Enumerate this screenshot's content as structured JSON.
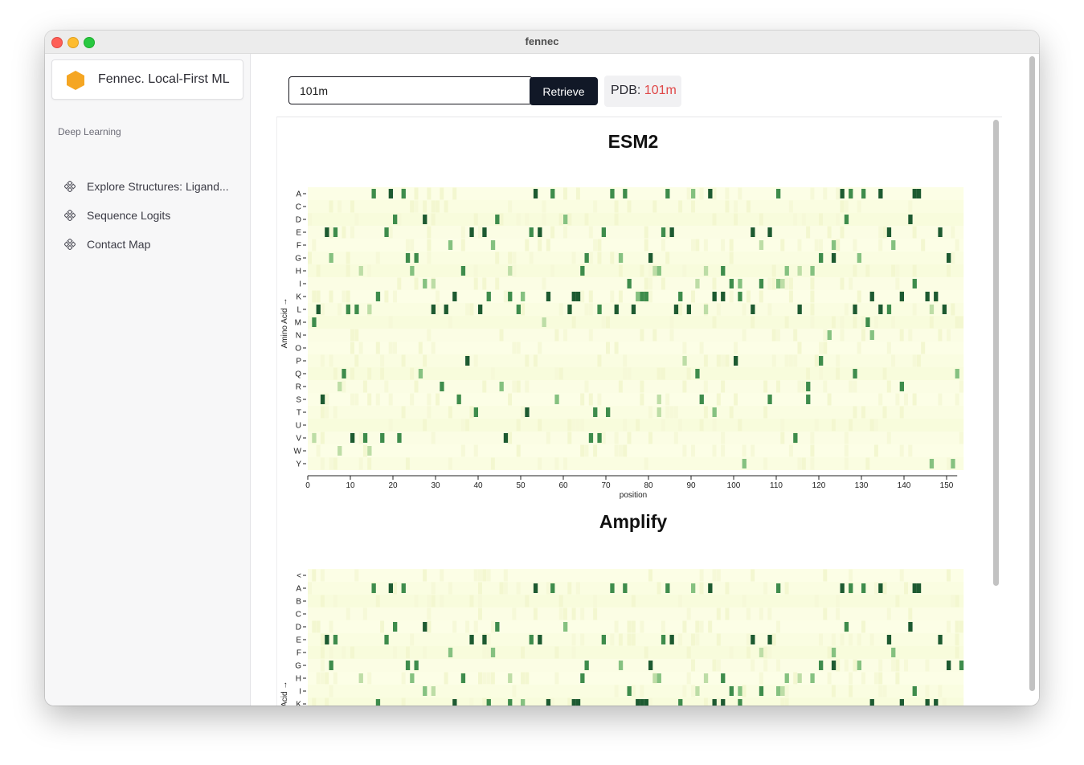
{
  "window": {
    "title": "fennec"
  },
  "sidebar": {
    "brand": "Fennec. Local-First ML",
    "section": "Deep Learning",
    "items": [
      {
        "label": "Explore Structures: Ligand..."
      },
      {
        "label": "Sequence Logits"
      },
      {
        "label": "Contact Map"
      }
    ]
  },
  "search": {
    "value": "101m",
    "button_label": "Retrieve"
  },
  "pdb": {
    "label": "PDB:",
    "value": "101m"
  },
  "colors": {
    "accent": "#f5a623",
    "button": "#111827",
    "pdb_value": "#e04848",
    "heat_low": "#fafde0",
    "heat_high": "#1d5a31"
  },
  "chart_data": [
    {
      "type": "heatmap",
      "title": "ESM2",
      "xlabel": "position",
      "ylabel": "Amino Acid →",
      "xlim": [
        0,
        153
      ],
      "x_ticks": [
        0,
        10,
        20,
        30,
        40,
        50,
        60,
        70,
        80,
        90,
        100,
        110,
        120,
        130,
        140,
        150
      ],
      "rows": [
        "A",
        "C",
        "D",
        "E",
        "F",
        "G",
        "H",
        "I",
        "K",
        "L",
        "M",
        "N",
        "O",
        "P",
        "Q",
        "R",
        "S",
        "T",
        "U",
        "V",
        "W",
        "Y"
      ],
      "cells": {
        "A": [
          [
            15,
            3
          ],
          [
            19,
            4
          ],
          [
            22,
            3
          ],
          [
            53,
            4
          ],
          [
            57,
            3
          ],
          [
            71,
            3
          ],
          [
            74,
            3
          ],
          [
            84,
            3
          ],
          [
            90,
            2
          ],
          [
            94,
            4
          ],
          [
            110,
            3
          ],
          [
            125,
            4
          ],
          [
            127,
            3
          ],
          [
            130,
            3
          ],
          [
            134,
            4
          ],
          [
            142,
            4
          ],
          [
            143,
            4
          ]
        ],
        "D": [
          [
            20,
            3
          ],
          [
            27,
            4
          ],
          [
            44,
            3
          ],
          [
            60,
            2
          ],
          [
            126,
            3
          ],
          [
            141,
            4
          ]
        ],
        "E": [
          [
            4,
            4
          ],
          [
            6,
            3
          ],
          [
            18,
            3
          ],
          [
            38,
            4
          ],
          [
            41,
            4
          ],
          [
            52,
            3
          ],
          [
            54,
            4
          ],
          [
            69,
            3
          ],
          [
            83,
            3
          ],
          [
            85,
            4
          ],
          [
            104,
            4
          ],
          [
            108,
            4
          ],
          [
            136,
            4
          ],
          [
            148,
            4
          ]
        ],
        "F": [
          [
            33,
            2
          ],
          [
            43,
            2
          ],
          [
            106,
            1
          ],
          [
            123,
            2
          ],
          [
            137,
            2
          ]
        ],
        "G": [
          [
            5,
            2
          ],
          [
            23,
            3
          ],
          [
            25,
            3
          ],
          [
            65,
            3
          ],
          [
            73,
            2
          ],
          [
            80,
            4
          ],
          [
            120,
            3
          ],
          [
            123,
            4
          ],
          [
            129,
            2
          ],
          [
            150,
            4
          ]
        ],
        "H": [
          [
            12,
            1
          ],
          [
            24,
            2
          ],
          [
            36,
            3
          ],
          [
            47,
            1
          ],
          [
            64,
            3
          ],
          [
            81,
            1
          ],
          [
            82,
            2
          ],
          [
            93,
            1
          ],
          [
            97,
            3
          ],
          [
            112,
            2
          ],
          [
            115,
            1
          ],
          [
            118,
            2
          ]
        ],
        "I": [
          [
            27,
            2
          ],
          [
            29,
            1
          ],
          [
            75,
            3
          ],
          [
            91,
            1
          ],
          [
            99,
            3
          ],
          [
            101,
            2
          ],
          [
            106,
            3
          ],
          [
            110,
            2
          ],
          [
            111,
            1
          ],
          [
            142,
            3
          ]
        ],
        "K": [
          [
            16,
            3
          ],
          [
            34,
            4
          ],
          [
            42,
            3
          ],
          [
            47,
            3
          ],
          [
            50,
            2
          ],
          [
            56,
            4
          ],
          [
            62,
            4
          ],
          [
            63,
            4
          ],
          [
            77,
            2
          ],
          [
            78,
            3
          ],
          [
            79,
            3
          ],
          [
            87,
            3
          ],
          [
            95,
            4
          ],
          [
            97,
            4
          ],
          [
            101,
            3
          ],
          [
            132,
            4
          ],
          [
            139,
            4
          ],
          [
            145,
            4
          ],
          [
            147,
            4
          ]
        ],
        "L": [
          [
            2,
            4
          ],
          [
            9,
            3
          ],
          [
            11,
            3
          ],
          [
            14,
            1
          ],
          [
            29,
            4
          ],
          [
            32,
            4
          ],
          [
            40,
            4
          ],
          [
            49,
            3
          ],
          [
            61,
            4
          ],
          [
            68,
            3
          ],
          [
            72,
            4
          ],
          [
            76,
            4
          ],
          [
            86,
            4
          ],
          [
            89,
            4
          ],
          [
            93,
            1
          ],
          [
            104,
            4
          ],
          [
            115,
            4
          ],
          [
            128,
            4
          ],
          [
            134,
            4
          ],
          [
            136,
            3
          ],
          [
            146,
            1
          ],
          [
            149,
            4
          ]
        ],
        "M": [
          [
            1,
            3
          ],
          [
            55,
            1
          ],
          [
            131,
            3
          ]
        ],
        "N": [
          [
            122,
            2
          ],
          [
            132,
            2
          ]
        ],
        "P": [
          [
            37,
            4
          ],
          [
            88,
            1
          ],
          [
            100,
            4
          ],
          [
            120,
            3
          ]
        ],
        "Q": [
          [
            8,
            3
          ],
          [
            26,
            2
          ],
          [
            91,
            3
          ],
          [
            128,
            3
          ],
          [
            152,
            2
          ]
        ],
        "R": [
          [
            7,
            1
          ],
          [
            31,
            3
          ],
          [
            45,
            2
          ],
          [
            117,
            3
          ],
          [
            139,
            3
          ]
        ],
        "S": [
          [
            3,
            4
          ],
          [
            35,
            3
          ],
          [
            58,
            2
          ],
          [
            82,
            1
          ],
          [
            92,
            3
          ],
          [
            108,
            3
          ],
          [
            117,
            3
          ]
        ],
        "T": [
          [
            39,
            3
          ],
          [
            51,
            4
          ],
          [
            67,
            3
          ],
          [
            70,
            3
          ],
          [
            82,
            1
          ],
          [
            95,
            2
          ]
        ],
        "V": [
          [
            1,
            1
          ],
          [
            10,
            4
          ],
          [
            13,
            3
          ],
          [
            17,
            3
          ],
          [
            21,
            3
          ],
          [
            46,
            4
          ],
          [
            66,
            3
          ],
          [
            68,
            3
          ],
          [
            114,
            3
          ]
        ],
        "W": [
          [
            7,
            1
          ],
          [
            14,
            1
          ]
        ],
        "Y": [
          [
            102,
            2
          ],
          [
            146,
            2
          ],
          [
            151,
            2
          ]
        ]
      }
    },
    {
      "type": "heatmap",
      "title": "Amplify",
      "xlabel": "",
      "ylabel": "Amino Acid →",
      "rows": [
        "<",
        "A",
        "B",
        "C",
        "D",
        "E",
        "F",
        "G",
        "H",
        "I",
        "K"
      ],
      "cells": {
        "A": [
          [
            15,
            3
          ],
          [
            19,
            4
          ],
          [
            22,
            3
          ],
          [
            53,
            4
          ],
          [
            57,
            3
          ],
          [
            71,
            3
          ],
          [
            74,
            3
          ],
          [
            84,
            3
          ],
          [
            90,
            2
          ],
          [
            94,
            4
          ],
          [
            110,
            3
          ],
          [
            125,
            4
          ],
          [
            127,
            3
          ],
          [
            130,
            3
          ],
          [
            134,
            4
          ],
          [
            142,
            4
          ],
          [
            143,
            4
          ]
        ],
        "D": [
          [
            20,
            3
          ],
          [
            27,
            4
          ],
          [
            44,
            3
          ],
          [
            60,
            2
          ],
          [
            126,
            3
          ],
          [
            141,
            4
          ]
        ],
        "E": [
          [
            4,
            4
          ],
          [
            6,
            3
          ],
          [
            18,
            3
          ],
          [
            38,
            4
          ],
          [
            41,
            4
          ],
          [
            52,
            3
          ],
          [
            54,
            4
          ],
          [
            69,
            3
          ],
          [
            83,
            3
          ],
          [
            85,
            4
          ],
          [
            104,
            4
          ],
          [
            108,
            4
          ],
          [
            136,
            4
          ],
          [
            148,
            4
          ]
        ],
        "F": [
          [
            33,
            2
          ],
          [
            43,
            2
          ],
          [
            106,
            1
          ],
          [
            123,
            2
          ],
          [
            137,
            2
          ]
        ],
        "G": [
          [
            5,
            3
          ],
          [
            23,
            3
          ],
          [
            25,
            3
          ],
          [
            65,
            3
          ],
          [
            73,
            2
          ],
          [
            80,
            4
          ],
          [
            120,
            3
          ],
          [
            123,
            4
          ],
          [
            129,
            2
          ],
          [
            150,
            4
          ],
          [
            153,
            3
          ]
        ],
        "H": [
          [
            12,
            1
          ],
          [
            24,
            2
          ],
          [
            36,
            3
          ],
          [
            47,
            1
          ],
          [
            64,
            3
          ],
          [
            81,
            1
          ],
          [
            82,
            2
          ],
          [
            93,
            1
          ],
          [
            97,
            3
          ],
          [
            112,
            2
          ],
          [
            115,
            1
          ],
          [
            118,
            2
          ]
        ],
        "I": [
          [
            27,
            2
          ],
          [
            29,
            1
          ],
          [
            75,
            3
          ],
          [
            91,
            1
          ],
          [
            99,
            3
          ],
          [
            101,
            2
          ],
          [
            106,
            3
          ],
          [
            110,
            2
          ],
          [
            111,
            1
          ],
          [
            142,
            3
          ]
        ],
        "K": [
          [
            16,
            3
          ],
          [
            34,
            4
          ],
          [
            42,
            3
          ],
          [
            47,
            3
          ],
          [
            50,
            2
          ],
          [
            56,
            4
          ],
          [
            62,
            4
          ],
          [
            63,
            4
          ],
          [
            77,
            4
          ],
          [
            78,
            4
          ],
          [
            79,
            4
          ],
          [
            87,
            3
          ],
          [
            95,
            4
          ],
          [
            97,
            4
          ],
          [
            101,
            3
          ],
          [
            132,
            4
          ],
          [
            139,
            4
          ],
          [
            145,
            4
          ],
          [
            147,
            4
          ]
        ]
      }
    }
  ]
}
